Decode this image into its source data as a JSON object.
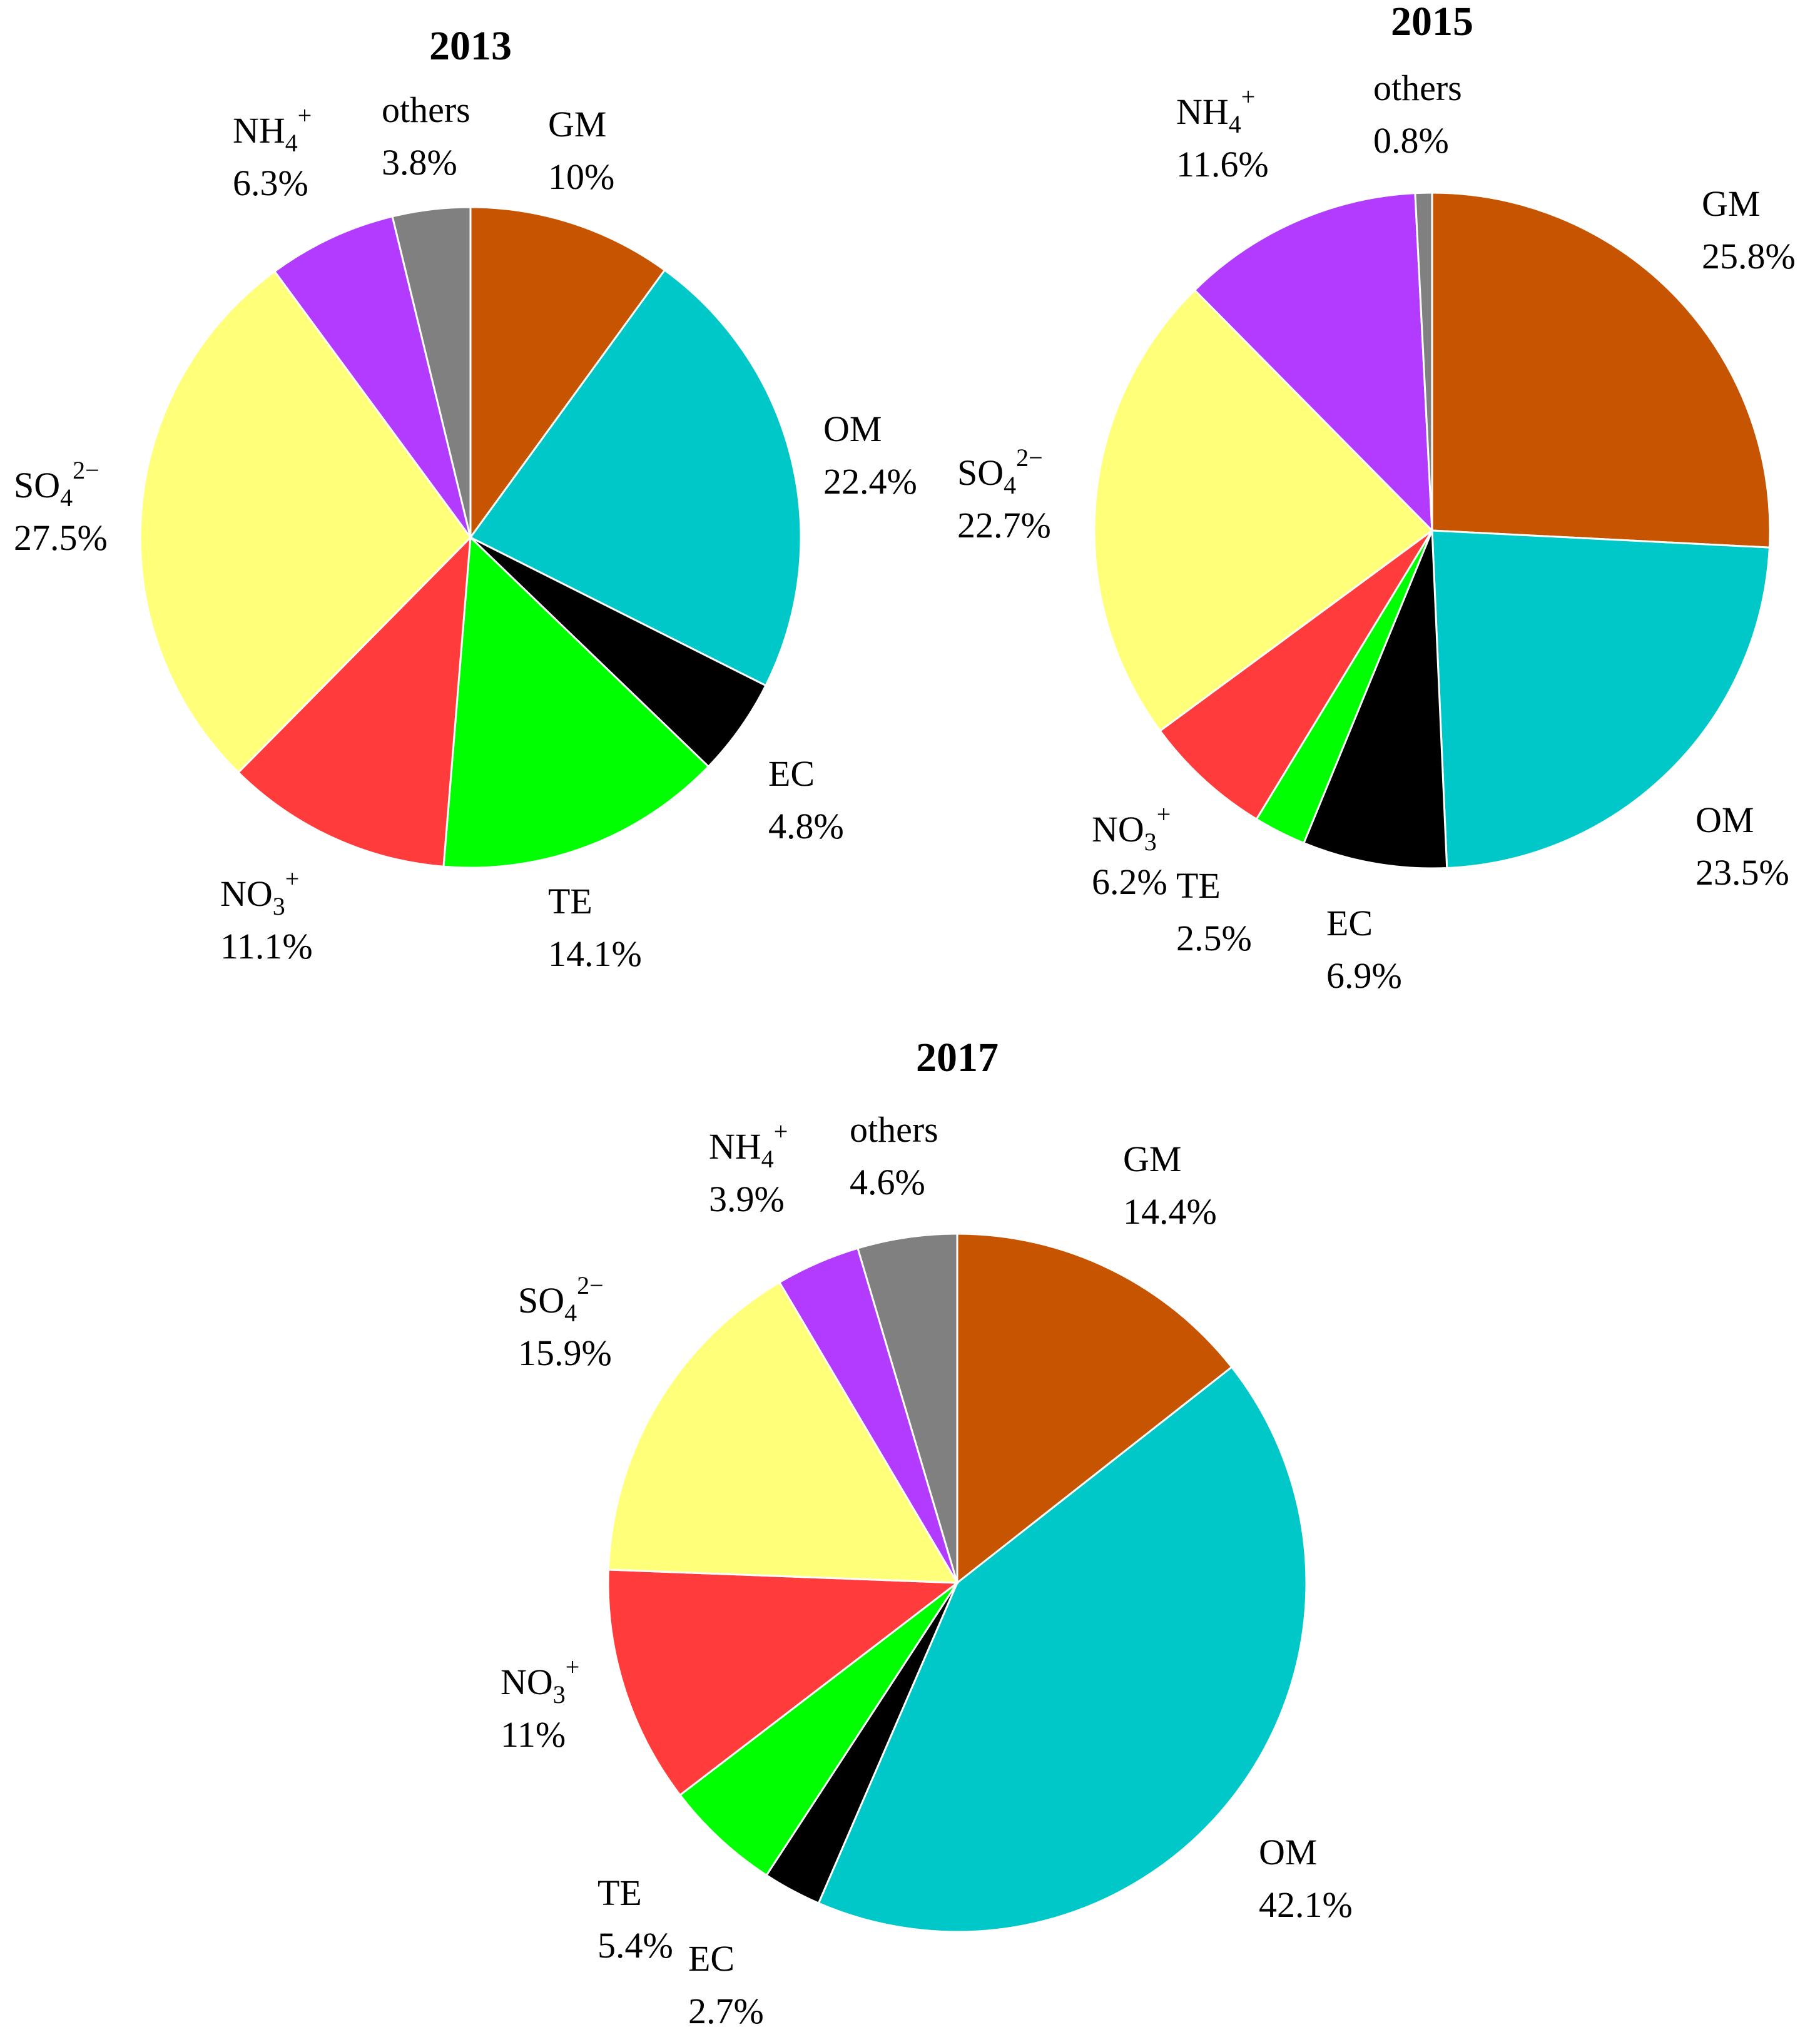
{
  "figure": {
    "background": "#ffffff"
  },
  "colors": {
    "GM": "#c75400",
    "OM": "#00c8c8",
    "EC": "#000000",
    "TE": "#00ff00",
    "NO3": "#ff3b3b",
    "SO4": "#ffff7a",
    "NH4": "#b23bff",
    "others": "#808080"
  },
  "chart_data": [
    {
      "type": "pie",
      "title": "2013",
      "slices": [
        {
          "key": "GM",
          "base": "GM",
          "sub": "",
          "sup": "",
          "value": 10,
          "percent_label": "10%"
        },
        {
          "key": "OM",
          "base": "OM",
          "sub": "",
          "sup": "",
          "value": 22.4,
          "percent_label": "22.4%"
        },
        {
          "key": "EC",
          "base": "EC",
          "sub": "",
          "sup": "",
          "value": 4.8,
          "percent_label": "4.8%"
        },
        {
          "key": "TE",
          "base": "TE",
          "sub": "",
          "sup": "",
          "value": 14.1,
          "percent_label": "14.1%"
        },
        {
          "key": "NO3",
          "base": "NO",
          "sub": "3",
          "sup": "+",
          "value": 11.1,
          "percent_label": "11.1%"
        },
        {
          "key": "SO4",
          "base": "SO",
          "sub": "4",
          "sup": "2−",
          "value": 27.5,
          "percent_label": "27.5%"
        },
        {
          "key": "NH4",
          "base": "NH",
          "sub": "4",
          "sup": "+",
          "value": 6.3,
          "percent_label": "6.3%"
        },
        {
          "key": "others",
          "base": "others",
          "sub": "",
          "sup": "",
          "value": 3.8,
          "percent_label": "3.8%"
        }
      ]
    },
    {
      "type": "pie",
      "title": "2015",
      "slices": [
        {
          "key": "GM",
          "base": "GM",
          "sub": "",
          "sup": "",
          "value": 25.8,
          "percent_label": "25.8%"
        },
        {
          "key": "OM",
          "base": "OM",
          "sub": "",
          "sup": "",
          "value": 23.5,
          "percent_label": "23.5%"
        },
        {
          "key": "EC",
          "base": "EC",
          "sub": "",
          "sup": "",
          "value": 6.9,
          "percent_label": "6.9%"
        },
        {
          "key": "TE",
          "base": "TE",
          "sub": "",
          "sup": "",
          "value": 2.5,
          "percent_label": "2.5%"
        },
        {
          "key": "NO3",
          "base": "NO",
          "sub": "3",
          "sup": "+",
          "value": 6.2,
          "percent_label": "6.2%"
        },
        {
          "key": "SO4",
          "base": "SO",
          "sub": "4",
          "sup": "2−",
          "value": 22.7,
          "percent_label": "22.7%"
        },
        {
          "key": "NH4",
          "base": "NH",
          "sub": "4",
          "sup": "+",
          "value": 11.6,
          "percent_label": "11.6%"
        },
        {
          "key": "others",
          "base": "others",
          "sub": "",
          "sup": "",
          "value": 0.8,
          "percent_label": "0.8%"
        }
      ]
    },
    {
      "type": "pie",
      "title": "2017",
      "slices": [
        {
          "key": "GM",
          "base": "GM",
          "sub": "",
          "sup": "",
          "value": 14.4,
          "percent_label": "14.4%"
        },
        {
          "key": "OM",
          "base": "OM",
          "sub": "",
          "sup": "",
          "value": 42.1,
          "percent_label": "42.1%"
        },
        {
          "key": "EC",
          "base": "EC",
          "sub": "",
          "sup": "",
          "value": 2.7,
          "percent_label": "2.7%"
        },
        {
          "key": "TE",
          "base": "TE",
          "sub": "",
          "sup": "",
          "value": 5.4,
          "percent_label": "5.4%"
        },
        {
          "key": "NO3",
          "base": "NO",
          "sub": "3",
          "sup": "+",
          "value": 11,
          "percent_label": "11%"
        },
        {
          "key": "SO4",
          "base": "SO",
          "sub": "4",
          "sup": "2−",
          "value": 15.9,
          "percent_label": "15.9%"
        },
        {
          "key": "NH4",
          "base": "NH",
          "sub": "4",
          "sup": "+",
          "value": 3.9,
          "percent_label": "3.9%"
        },
        {
          "key": "others",
          "base": "others",
          "sub": "",
          "sup": "",
          "value": 4.6,
          "percent_label": "4.6%"
        }
      ]
    }
  ]
}
